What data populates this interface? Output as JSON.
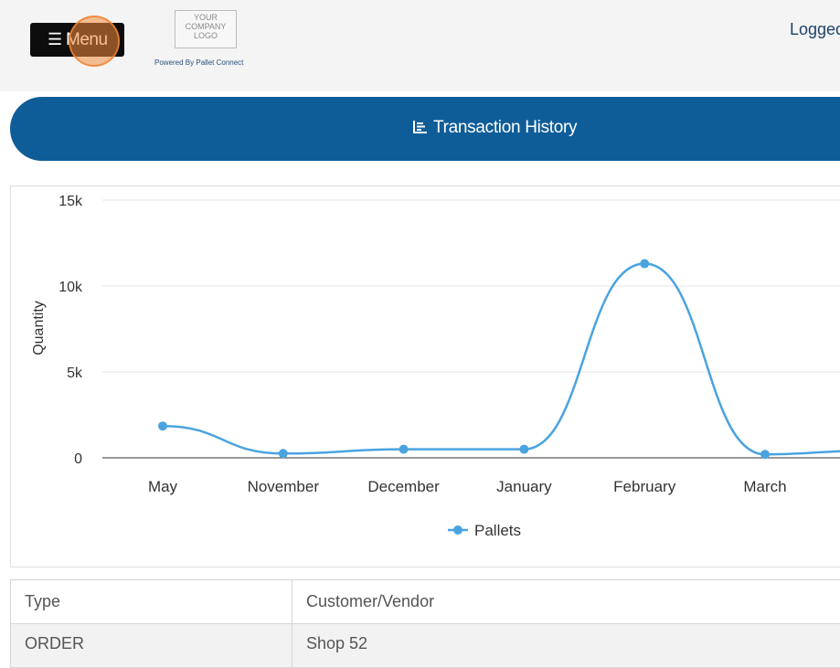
{
  "header": {
    "menu_label": "Menu",
    "menu_icon": "hamburger-icon",
    "logo_lines": [
      "YOUR",
      "COMPANY",
      "LOGO"
    ],
    "powered_by": "Powered By Pallet Connect",
    "logged_in_text": "Loggec"
  },
  "banner": {
    "title": "Transaction History",
    "icon": "bar-chart-icon",
    "color": "#0f5d98"
  },
  "chart_data": {
    "type": "line",
    "title": "",
    "xlabel": "",
    "ylabel": "Quantity",
    "categories": [
      "May",
      "November",
      "December",
      "January",
      "February",
      "March"
    ],
    "series": [
      {
        "name": "Pallets",
        "values": [
          1850,
          250,
          500,
          500,
          11300,
          200
        ],
        "color": "#4aa3df"
      }
    ],
    "ylim": [
      0,
      15000
    ],
    "yticks": [
      "0",
      "5k",
      "10k",
      "15k"
    ],
    "ytick_values": [
      0,
      5000,
      10000,
      15000
    ],
    "grid": true,
    "legend_position": "bottom"
  },
  "table": {
    "columns": [
      "Type",
      "Customer/Vendor"
    ],
    "rows": [
      [
        "ORDER",
        "Shop 52"
      ]
    ]
  }
}
